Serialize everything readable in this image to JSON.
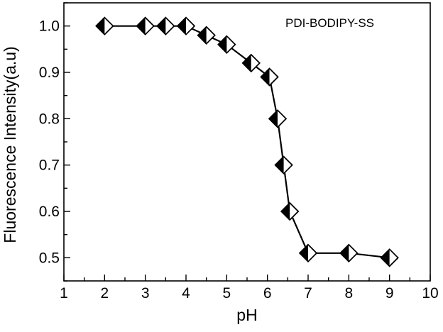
{
  "chart_data": {
    "type": "line",
    "title": "",
    "xlabel": "pH",
    "ylabel": "Fluorescence Intensity(a.u)",
    "xlim": [
      1,
      10
    ],
    "ylim": [
      0.45,
      1.05
    ],
    "x_ticks": [
      1,
      2,
      3,
      4,
      5,
      6,
      7,
      8,
      9,
      10
    ],
    "y_ticks": [
      0.5,
      0.6,
      0.7,
      0.8,
      0.9,
      1.0
    ],
    "x_tick_labels": [
      "1",
      "2",
      "3",
      "4",
      "5",
      "6",
      "7",
      "8",
      "9",
      "10"
    ],
    "y_tick_labels": [
      "0.5",
      "0.6",
      "0.7",
      "0.8",
      "0.9",
      "1.0"
    ],
    "grid": false,
    "legend_position": "top-right",
    "marker": "half-filled-diamond",
    "series": [
      {
        "name": "PDI-BODIPY-SS",
        "x": [
          2.0,
          3.0,
          3.5,
          4.0,
          4.5,
          5.0,
          5.6,
          6.05,
          6.25,
          6.4,
          6.55,
          7.0,
          8.0,
          9.0
        ],
        "y": [
          1.0,
          1.0,
          1.0,
          1.0,
          0.98,
          0.96,
          0.92,
          0.89,
          0.8,
          0.7,
          0.6,
          0.51,
          0.51,
          0.5
        ]
      }
    ]
  }
}
